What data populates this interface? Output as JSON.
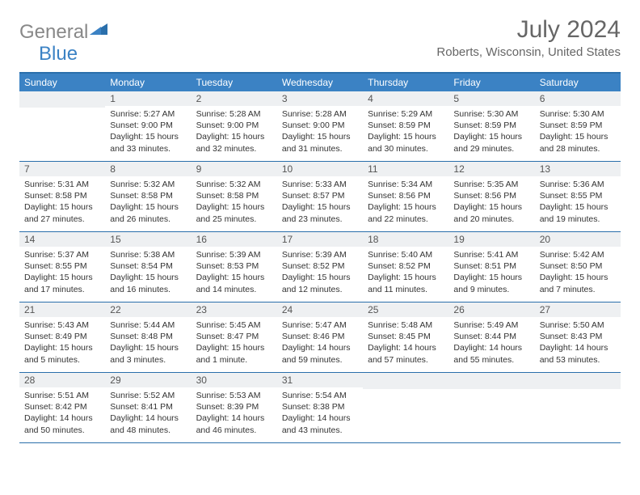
{
  "brand": {
    "part1": "General",
    "part2": "Blue"
  },
  "title": "July 2024",
  "location": "Roberts, Wisconsin, United States",
  "colors": {
    "header_bg": "#3b82c4",
    "border": "#2a6fab",
    "daynum_bg": "#eef0f2",
    "text": "#333333",
    "muted": "#666666"
  },
  "day_headers": [
    "Sunday",
    "Monday",
    "Tuesday",
    "Wednesday",
    "Thursday",
    "Friday",
    "Saturday"
  ],
  "weeks": [
    [
      {
        "n": "",
        "lines": []
      },
      {
        "n": "1",
        "lines": [
          "Sunrise: 5:27 AM",
          "Sunset: 9:00 PM",
          "Daylight: 15 hours and 33 minutes."
        ]
      },
      {
        "n": "2",
        "lines": [
          "Sunrise: 5:28 AM",
          "Sunset: 9:00 PM",
          "Daylight: 15 hours and 32 minutes."
        ]
      },
      {
        "n": "3",
        "lines": [
          "Sunrise: 5:28 AM",
          "Sunset: 9:00 PM",
          "Daylight: 15 hours and 31 minutes."
        ]
      },
      {
        "n": "4",
        "lines": [
          "Sunrise: 5:29 AM",
          "Sunset: 8:59 PM",
          "Daylight: 15 hours and 30 minutes."
        ]
      },
      {
        "n": "5",
        "lines": [
          "Sunrise: 5:30 AM",
          "Sunset: 8:59 PM",
          "Daylight: 15 hours and 29 minutes."
        ]
      },
      {
        "n": "6",
        "lines": [
          "Sunrise: 5:30 AM",
          "Sunset: 8:59 PM",
          "Daylight: 15 hours and 28 minutes."
        ]
      }
    ],
    [
      {
        "n": "7",
        "lines": [
          "Sunrise: 5:31 AM",
          "Sunset: 8:58 PM",
          "Daylight: 15 hours and 27 minutes."
        ]
      },
      {
        "n": "8",
        "lines": [
          "Sunrise: 5:32 AM",
          "Sunset: 8:58 PM",
          "Daylight: 15 hours and 26 minutes."
        ]
      },
      {
        "n": "9",
        "lines": [
          "Sunrise: 5:32 AM",
          "Sunset: 8:58 PM",
          "Daylight: 15 hours and 25 minutes."
        ]
      },
      {
        "n": "10",
        "lines": [
          "Sunrise: 5:33 AM",
          "Sunset: 8:57 PM",
          "Daylight: 15 hours and 23 minutes."
        ]
      },
      {
        "n": "11",
        "lines": [
          "Sunrise: 5:34 AM",
          "Sunset: 8:56 PM",
          "Daylight: 15 hours and 22 minutes."
        ]
      },
      {
        "n": "12",
        "lines": [
          "Sunrise: 5:35 AM",
          "Sunset: 8:56 PM",
          "Daylight: 15 hours and 20 minutes."
        ]
      },
      {
        "n": "13",
        "lines": [
          "Sunrise: 5:36 AM",
          "Sunset: 8:55 PM",
          "Daylight: 15 hours and 19 minutes."
        ]
      }
    ],
    [
      {
        "n": "14",
        "lines": [
          "Sunrise: 5:37 AM",
          "Sunset: 8:55 PM",
          "Daylight: 15 hours and 17 minutes."
        ]
      },
      {
        "n": "15",
        "lines": [
          "Sunrise: 5:38 AM",
          "Sunset: 8:54 PM",
          "Daylight: 15 hours and 16 minutes."
        ]
      },
      {
        "n": "16",
        "lines": [
          "Sunrise: 5:39 AM",
          "Sunset: 8:53 PM",
          "Daylight: 15 hours and 14 minutes."
        ]
      },
      {
        "n": "17",
        "lines": [
          "Sunrise: 5:39 AM",
          "Sunset: 8:52 PM",
          "Daylight: 15 hours and 12 minutes."
        ]
      },
      {
        "n": "18",
        "lines": [
          "Sunrise: 5:40 AM",
          "Sunset: 8:52 PM",
          "Daylight: 15 hours and 11 minutes."
        ]
      },
      {
        "n": "19",
        "lines": [
          "Sunrise: 5:41 AM",
          "Sunset: 8:51 PM",
          "Daylight: 15 hours and 9 minutes."
        ]
      },
      {
        "n": "20",
        "lines": [
          "Sunrise: 5:42 AM",
          "Sunset: 8:50 PM",
          "Daylight: 15 hours and 7 minutes."
        ]
      }
    ],
    [
      {
        "n": "21",
        "lines": [
          "Sunrise: 5:43 AM",
          "Sunset: 8:49 PM",
          "Daylight: 15 hours and 5 minutes."
        ]
      },
      {
        "n": "22",
        "lines": [
          "Sunrise: 5:44 AM",
          "Sunset: 8:48 PM",
          "Daylight: 15 hours and 3 minutes."
        ]
      },
      {
        "n": "23",
        "lines": [
          "Sunrise: 5:45 AM",
          "Sunset: 8:47 PM",
          "Daylight: 15 hours and 1 minute."
        ]
      },
      {
        "n": "24",
        "lines": [
          "Sunrise: 5:47 AM",
          "Sunset: 8:46 PM",
          "Daylight: 14 hours and 59 minutes."
        ]
      },
      {
        "n": "25",
        "lines": [
          "Sunrise: 5:48 AM",
          "Sunset: 8:45 PM",
          "Daylight: 14 hours and 57 minutes."
        ]
      },
      {
        "n": "26",
        "lines": [
          "Sunrise: 5:49 AM",
          "Sunset: 8:44 PM",
          "Daylight: 14 hours and 55 minutes."
        ]
      },
      {
        "n": "27",
        "lines": [
          "Sunrise: 5:50 AM",
          "Sunset: 8:43 PM",
          "Daylight: 14 hours and 53 minutes."
        ]
      }
    ],
    [
      {
        "n": "28",
        "lines": [
          "Sunrise: 5:51 AM",
          "Sunset: 8:42 PM",
          "Daylight: 14 hours and 50 minutes."
        ]
      },
      {
        "n": "29",
        "lines": [
          "Sunrise: 5:52 AM",
          "Sunset: 8:41 PM",
          "Daylight: 14 hours and 48 minutes."
        ]
      },
      {
        "n": "30",
        "lines": [
          "Sunrise: 5:53 AM",
          "Sunset: 8:39 PM",
          "Daylight: 14 hours and 46 minutes."
        ]
      },
      {
        "n": "31",
        "lines": [
          "Sunrise: 5:54 AM",
          "Sunset: 8:38 PM",
          "Daylight: 14 hours and 43 minutes."
        ]
      },
      {
        "n": "",
        "lines": []
      },
      {
        "n": "",
        "lines": []
      },
      {
        "n": "",
        "lines": []
      }
    ]
  ]
}
